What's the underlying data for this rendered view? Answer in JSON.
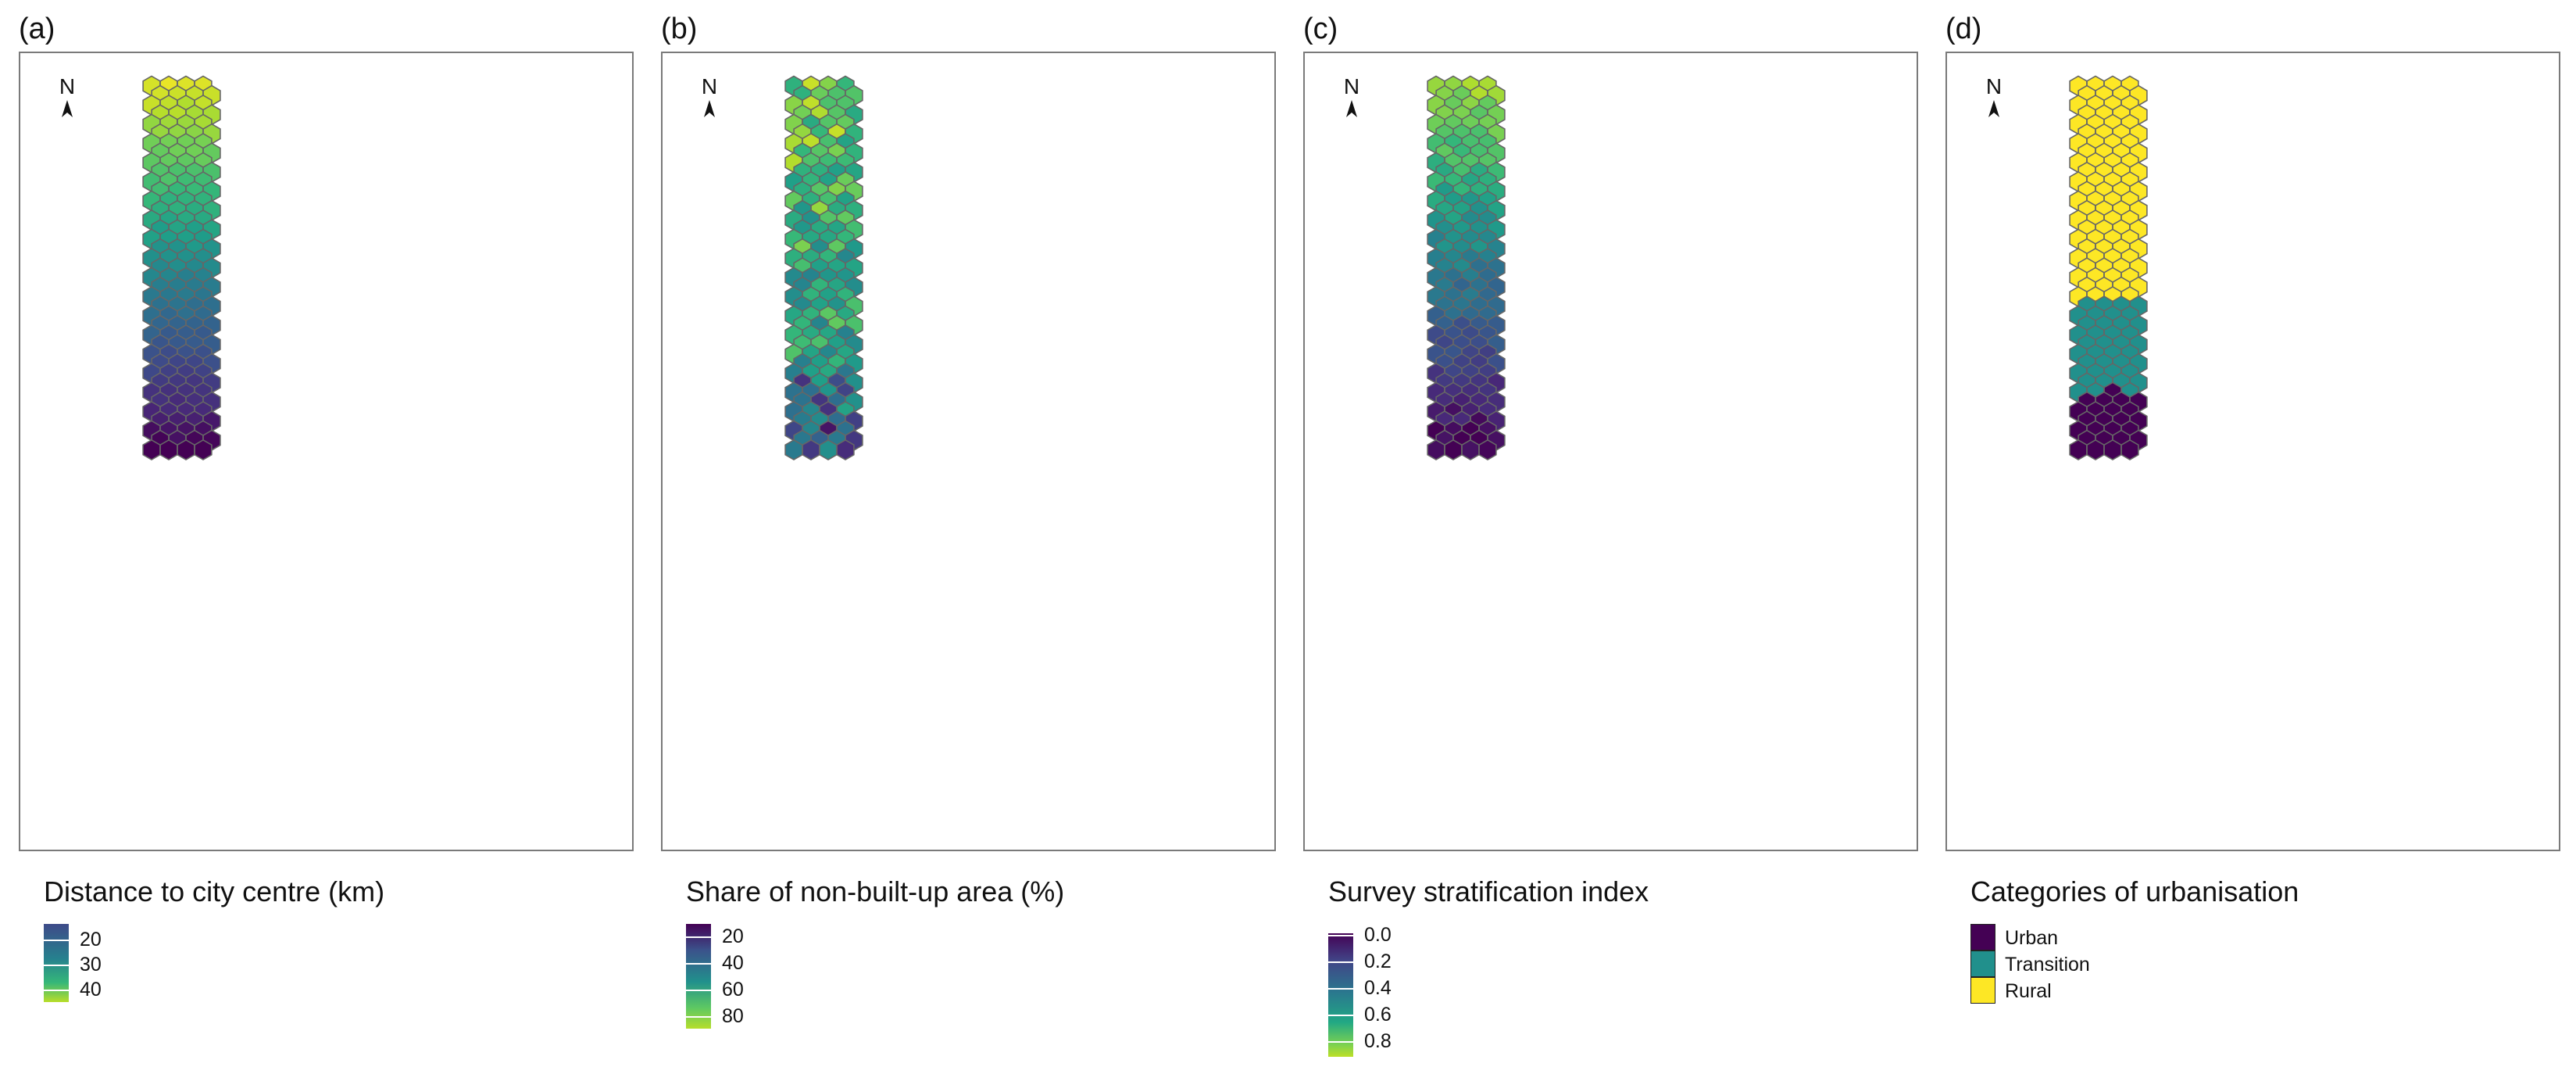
{
  "panels": [
    {
      "label": "(a)",
      "north": "N",
      "legend_title": "Distance to city centre (km)",
      "ticks": [
        "20",
        "30",
        "40"
      ],
      "variable": "distance_km"
    },
    {
      "label": "(b)",
      "north": "N",
      "legend_title": "Share of non-built-up area (%)",
      "ticks": [
        "20",
        "40",
        "60",
        "80"
      ],
      "variable": "non_built_up_pct"
    },
    {
      "label": "(c)",
      "north": "N",
      "legend_title": "Survey stratification index",
      "ticks": [
        "0.0",
        "0.2",
        "0.4",
        "0.6",
        "0.8"
      ],
      "variable": "stratification_index"
    },
    {
      "label": "(d)",
      "north": "N",
      "legend_title": "Categories of urbanisation",
      "categories": [
        "Urban",
        "Transition",
        "Rural"
      ],
      "variable": "urbanisation_category"
    }
  ],
  "colors": {
    "viridis_dark": "#440154",
    "viridis_mid": "#21908c",
    "viridis_light": "#fde725",
    "urban": "#440154",
    "transition": "#21908c",
    "rural": "#fde725",
    "hex_stroke": "#666666",
    "frame": "#7a7a7a"
  },
  "icons": {
    "north_arrow": "north-arrow-icon"
  }
}
